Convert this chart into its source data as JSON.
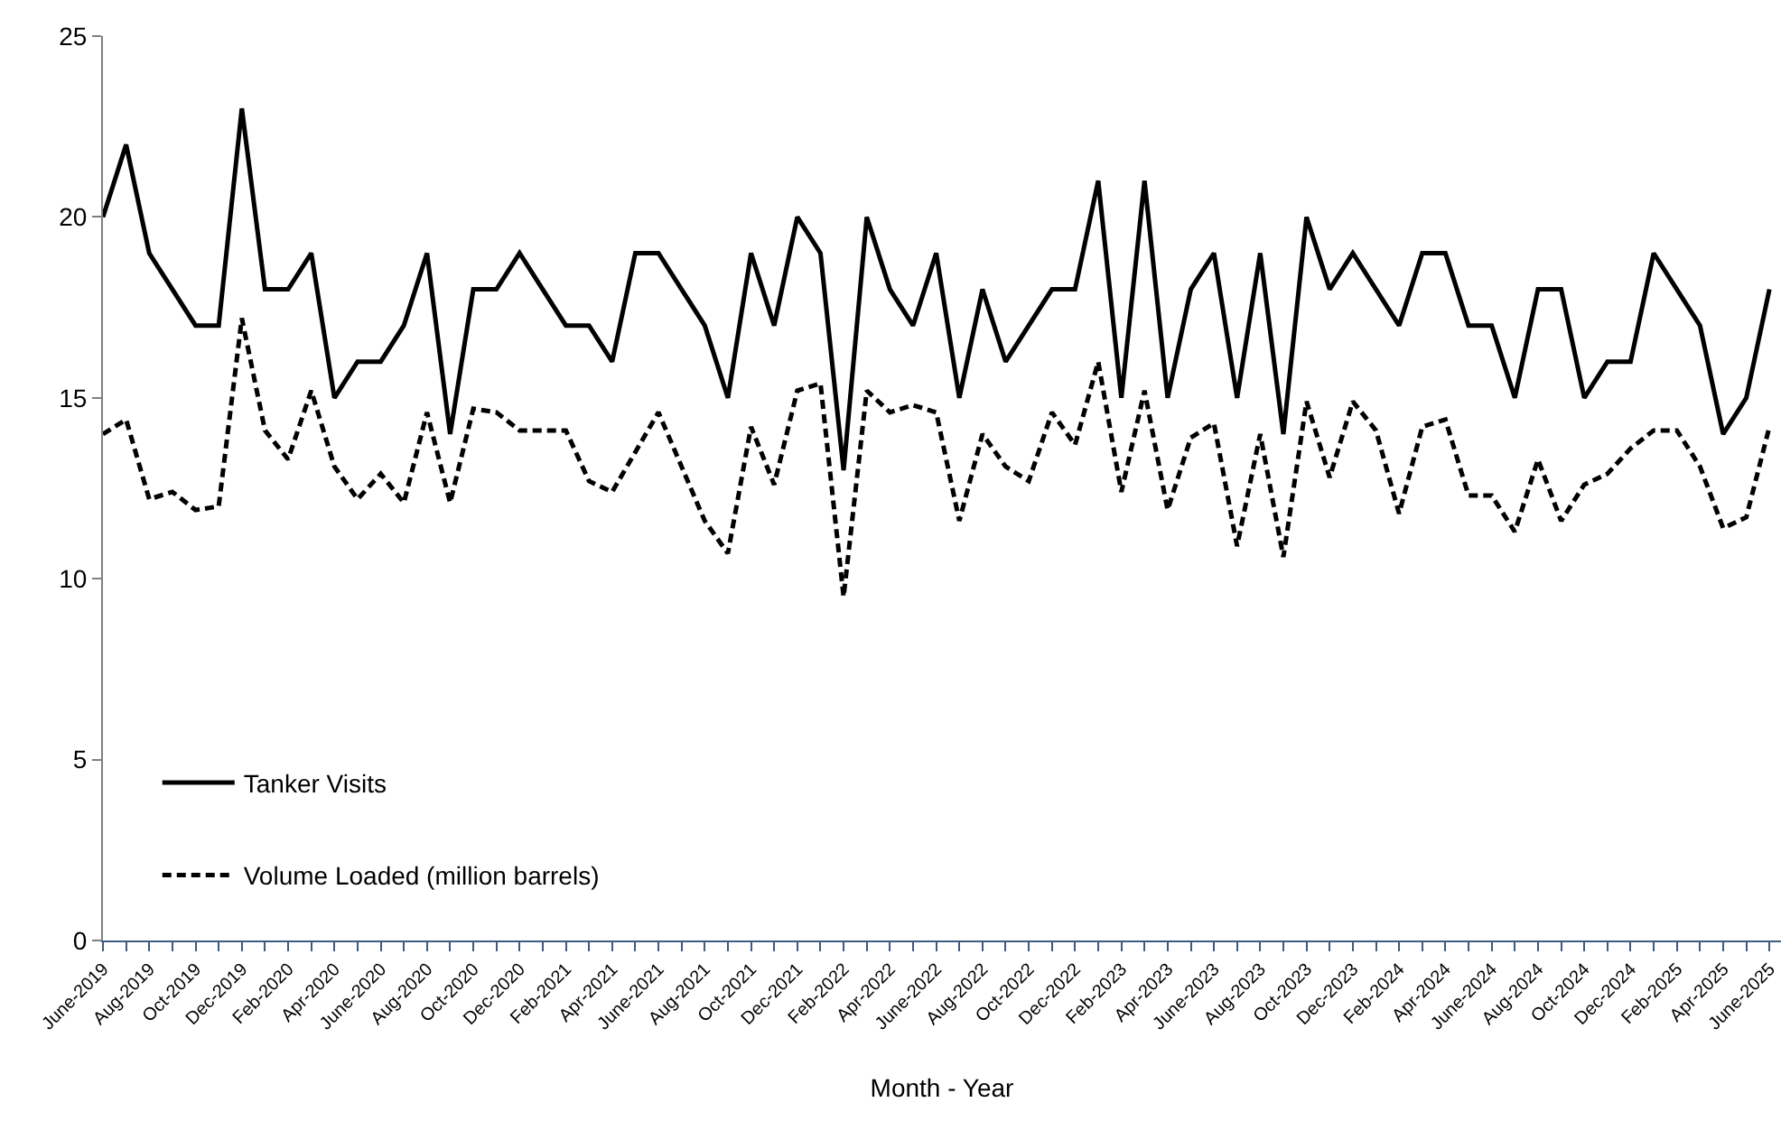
{
  "chart_data": {
    "type": "line",
    "xlabel": "Month - Year",
    "categories": [
      "June-2019",
      null,
      "Aug-2019",
      null,
      "Oct-2019",
      null,
      "Dec-2019",
      null,
      "Feb-2020",
      null,
      "Apr-2020",
      null,
      "June-2020",
      null,
      "Aug-2020",
      null,
      "Oct-2020",
      null,
      "Dec-2020",
      null,
      "Feb-2021",
      null,
      "Apr-2021",
      null,
      "June-2021",
      null,
      "Aug-2021",
      null,
      "Oct-2021",
      null,
      "Dec-2021",
      null,
      "Feb-2022",
      null,
      "Apr-2022",
      null,
      "June-2022",
      null,
      "Aug-2022",
      null,
      "Oct-2022",
      null,
      "Dec-2022",
      null,
      "Feb-2023",
      null,
      "Apr-2023",
      null,
      "June-2023",
      null,
      "Aug-2023",
      null,
      "Oct-2023",
      null,
      "Dec-2023",
      null,
      "Feb-2024",
      null,
      "Apr-2024",
      null,
      "June-2024",
      null,
      "Aug-2024",
      null,
      "Oct-2024",
      null,
      "Dec-2024",
      null,
      "Feb-2025",
      null,
      "Apr-2025",
      null,
      "June-2025"
    ],
    "series": [
      {
        "name": "Tanker Visits",
        "color": "#000000",
        "line_style": "solid",
        "values": [
          20,
          22,
          19,
          18,
          17,
          17,
          23,
          18,
          18,
          19,
          15,
          16,
          16,
          17,
          19,
          14,
          18,
          18,
          19,
          18,
          17,
          17,
          16,
          19,
          19,
          18,
          17,
          15,
          19,
          17,
          20,
          19,
          13,
          20,
          18,
          17,
          19,
          15,
          18,
          16,
          17,
          18,
          18,
          21,
          15,
          21,
          15,
          18,
          19,
          15,
          19,
          14,
          20,
          18,
          19,
          18,
          17,
          19,
          19,
          17,
          17,
          15,
          18,
          18,
          15,
          16,
          16,
          19,
          18,
          17,
          14,
          15,
          18
        ]
      },
      {
        "name": "Volume Loaded (million barrels)",
        "color": "#000000",
        "line_style": "dashed",
        "values": [
          14.0,
          14.4,
          12.2,
          12.4,
          11.9,
          12.0,
          17.2,
          14.1,
          13.3,
          15.2,
          13.1,
          12.2,
          12.9,
          12.1,
          14.6,
          12.1,
          14.7,
          14.6,
          14.1,
          14.1,
          14.1,
          12.7,
          12.4,
          13.5,
          14.6,
          13.1,
          11.6,
          10.7,
          14.2,
          12.6,
          15.2,
          15.4,
          9.5,
          15.2,
          14.6,
          14.8,
          14.6,
          11.6,
          14.0,
          13.1,
          12.7,
          14.6,
          13.7,
          16.0,
          12.4,
          15.2,
          11.9,
          13.9,
          14.3,
          10.9,
          14.0,
          10.6,
          14.9,
          12.8,
          14.9,
          14.1,
          11.8,
          14.2,
          14.4,
          12.3,
          12.3,
          11.3,
          13.3,
          11.6,
          12.6,
          12.9,
          13.6,
          14.1,
          14.1,
          13.1,
          11.4,
          11.7,
          14.2
        ]
      }
    ],
    "ylim": [
      0,
      25
    ],
    "yticks": [
      0,
      5,
      10,
      15,
      20,
      25
    ],
    "legend": "bottom left"
  }
}
